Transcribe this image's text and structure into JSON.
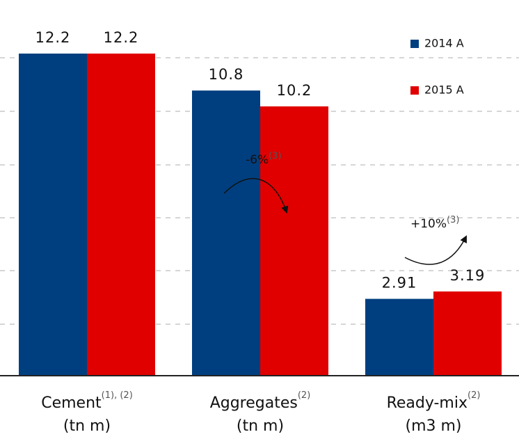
{
  "chart_data": {
    "type": "bar",
    "categories": [
      "Cement",
      "Aggregates",
      "Ready-mix"
    ],
    "category_notes": [
      "(1), (2)",
      "(2)",
      "(2)"
    ],
    "category_units": [
      "(tn m)",
      "(tn m)",
      "(m3 m)"
    ],
    "series": [
      {
        "name": "2014 A",
        "color": "#003f7f",
        "values": [
          12.2,
          10.8,
          2.91
        ]
      },
      {
        "name": "2015 A",
        "color": "#e00000",
        "values": [
          12.2,
          10.2,
          3.19
        ]
      }
    ],
    "annotations": [
      {
        "text": "-6%",
        "note": "(3)"
      },
      {
        "text": "+10%",
        "note": "(3)"
      }
    ],
    "legend": "top-right"
  }
}
